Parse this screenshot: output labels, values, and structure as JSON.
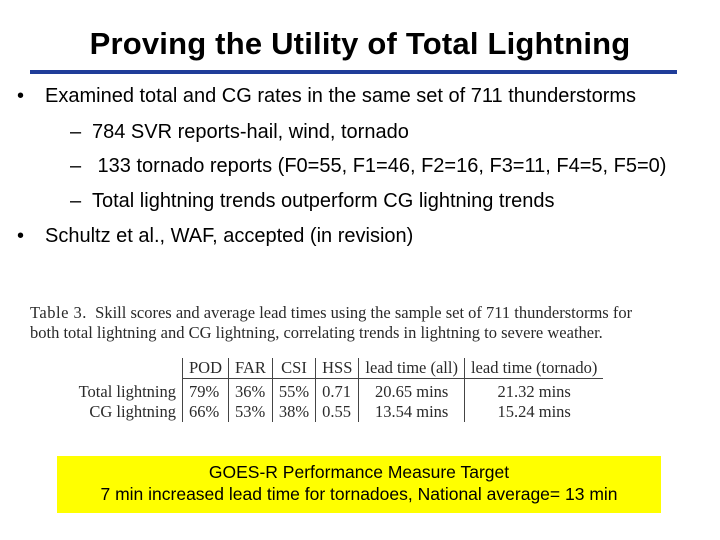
{
  "slide": {
    "title": "Proving the Utility of Total Lightning",
    "bullets": [
      {
        "mark": "•",
        "text": "Examined total and CG rates in the same set of 711 thunderstorms"
      },
      {
        "mark": "–",
        "text": "784 SVR reports-hail, wind, tornado"
      },
      {
        "mark": "–",
        "text": " 133 tornado reports (F0=55, F1=46, F2=16, F3=11, F4=5, F5=0)"
      },
      {
        "mark": "–",
        "text": "Total lightning trends outperform CG lightning trends"
      },
      {
        "mark": "•",
        "text": "Schultz et al., WAF, accepted (in revision)"
      }
    ]
  },
  "table": {
    "caption_label": "Table 3.",
    "caption_line1": "Skill scores and average lead times using the sample set of 711 thunderstorms for",
    "caption_line2": "both total lightning and CG lightning, correlating trends in lightning to severe weather.",
    "headers": [
      "",
      "POD",
      "FAR",
      "CSI",
      "HSS",
      "lead time (all)",
      "lead time (tornado)"
    ],
    "rows": [
      {
        "name": "Total lightning",
        "pod": "79%",
        "far": "36%",
        "csi": "55%",
        "hss": "0.71",
        "lead_all": "20.65 mins",
        "lead_tornado": "21.32 mins"
      },
      {
        "name": "CG lightning",
        "pod": "66%",
        "far": "53%",
        "csi": "38%",
        "hss": "0.55",
        "lead_all": "13.54 mins",
        "lead_tornado": "15.24 mins"
      }
    ]
  },
  "target_box": {
    "line1": "GOES-R Performance Measure Target",
    "line2": "7 min increased lead time for tornadoes, National average= 13 min",
    "color": "#ffff00"
  },
  "colors": {
    "title_rule": "#1f3d99"
  }
}
